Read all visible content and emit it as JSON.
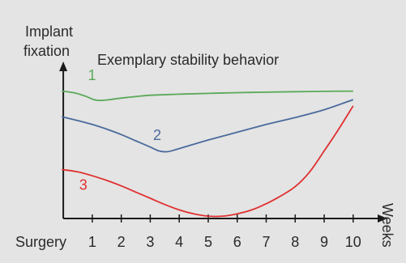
{
  "chart_data": {
    "type": "line",
    "title": "Exemplary stability behavior",
    "ylabel": [
      "Implant",
      "fixation"
    ],
    "xlabel": "Weeks",
    "x_tick_labels": [
      "Surgery",
      "1",
      "2",
      "3",
      "4",
      "5",
      "6",
      "7",
      "8",
      "9",
      "10"
    ],
    "x_ticks": [
      0,
      1,
      2,
      3,
      4,
      5,
      6,
      7,
      8,
      9,
      10
    ],
    "xlim": [
      -0.45,
      10.9
    ],
    "ylim": [
      0,
      10
    ],
    "y_tick_labels": false,
    "grid": false,
    "legend": "none",
    "colors": {
      "background": "#e4e4e4",
      "axis": "#1a1a1a",
      "text": "#2a2a2a"
    },
    "series": [
      {
        "name": "1",
        "color": "#5aa95a",
        "label_at": [
          0.85,
          8.9
        ],
        "x": [
          -0.05,
          0.4,
          0.8,
          1.05,
          1.3,
          1.6,
          2.0,
          2.5,
          3.0,
          4.0,
          5.0,
          6.0,
          7.0,
          8.0,
          9.0,
          10.0
        ],
        "y": [
          8.2,
          8.08,
          7.85,
          7.65,
          7.6,
          7.65,
          7.75,
          7.85,
          7.93,
          8.0,
          8.05,
          8.1,
          8.13,
          8.16,
          8.18,
          8.2
        ]
      },
      {
        "name": "2",
        "color": "#4a6a9c",
        "label_at": [
          3.1,
          5.05
        ],
        "x": [
          -0.05,
          0.5,
          1.0,
          1.5,
          2.0,
          2.5,
          3.0,
          3.3,
          3.6,
          4.0,
          5.0,
          6.0,
          7.0,
          8.0,
          9.0,
          10.0
        ],
        "y": [
          6.55,
          6.3,
          6.05,
          5.75,
          5.4,
          5.0,
          4.6,
          4.35,
          4.3,
          4.5,
          5.05,
          5.55,
          6.05,
          6.5,
          7.0,
          7.65
        ]
      },
      {
        "name": "3",
        "color": "#e03030",
        "label_at": [
          0.55,
          1.85
        ],
        "x": [
          -0.05,
          0.5,
          1.0,
          1.5,
          2.0,
          2.5,
          3.0,
          3.5,
          4.0,
          4.5,
          5.0,
          5.5,
          6.0,
          6.5,
          7.0,
          7.5,
          8.0,
          8.5,
          9.0,
          9.5,
          10.0
        ],
        "y": [
          3.15,
          3.0,
          2.75,
          2.45,
          2.1,
          1.7,
          1.3,
          0.9,
          0.55,
          0.3,
          0.15,
          0.15,
          0.3,
          0.55,
          0.95,
          1.45,
          2.05,
          3.0,
          4.35,
          5.75,
          7.25
        ]
      }
    ]
  }
}
